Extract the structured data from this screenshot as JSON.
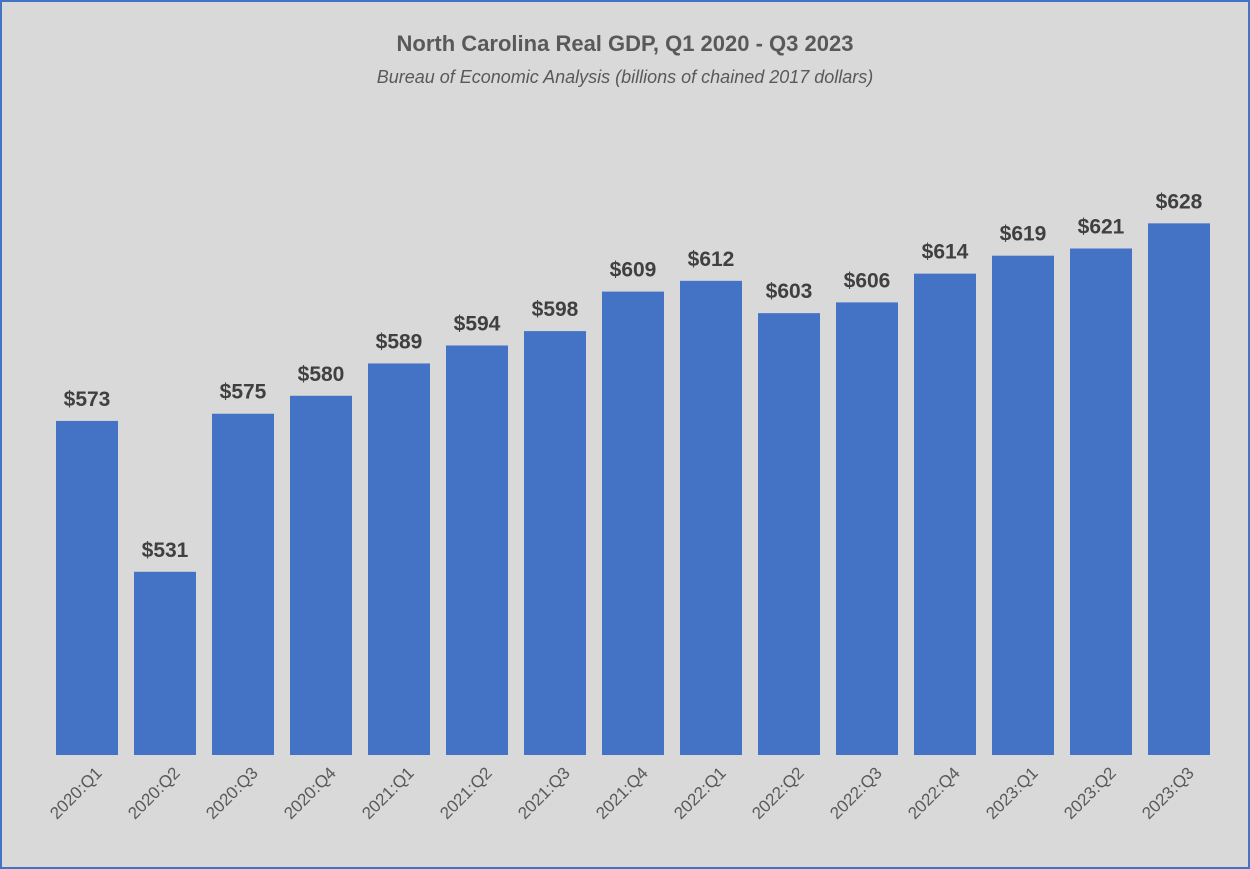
{
  "chart_data": {
    "type": "bar",
    "title": "North Carolina Real GDP, Q1 2020 - Q3 2023",
    "subtitle": "Bureau of Economic Analysis (billions of chained 2017 dollars)",
    "categories": [
      "2020:Q1",
      "2020:Q2",
      "2020:Q3",
      "2020:Q4",
      "2021:Q1",
      "2021:Q2",
      "2021:Q3",
      "2021:Q4",
      "2022:Q1",
      "2022:Q2",
      "2022:Q3",
      "2022:Q4",
      "2023:Q1",
      "2023:Q2",
      "2023:Q3"
    ],
    "values": [
      573,
      531,
      575,
      580,
      589,
      594,
      598,
      609,
      612,
      603,
      606,
      614,
      619,
      621,
      628
    ],
    "value_labels": [
      "$573",
      "$531",
      "$575",
      "$580",
      "$589",
      "$594",
      "$598",
      "$609",
      "$612",
      "$603",
      "$606",
      "$614",
      "$619",
      "$621",
      "$628"
    ],
    "ylim": [
      480,
      640
    ],
    "grid": false,
    "legend": "none",
    "colors": {
      "bar": "#4472c4",
      "background": "#d9d9d9",
      "border": "#4472c4"
    }
  }
}
